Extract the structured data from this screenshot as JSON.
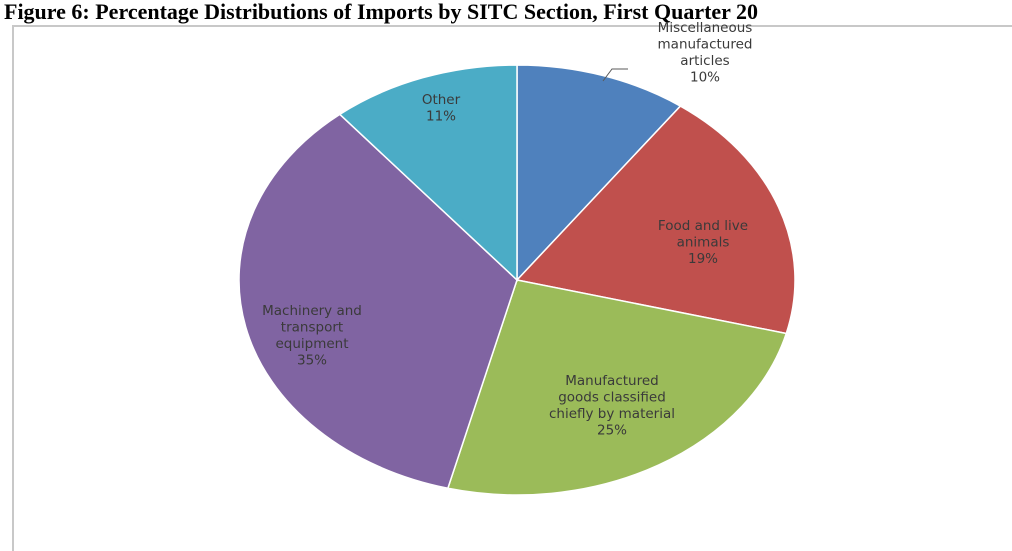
{
  "title": "Figure 6: Percentage Distributions of Imports by SITC Section, First Quarter 20",
  "colors": {
    "misc": "#4f81bd",
    "food": "#c0504d",
    "manufactured": "#9bbb59",
    "machinery": "#8064a2",
    "other": "#4bacc6"
  },
  "chart_data": {
    "type": "pie",
    "title": "Figure 6: Percentage Distributions of Imports by SITC Section, First Quarter 20",
    "slices": [
      {
        "label": [
          "Miscellaneous",
          "manufactured",
          "articles"
        ],
        "value": 10,
        "pct_label": "10%",
        "color_key": "misc"
      },
      {
        "label": [
          "Food and live",
          "animals"
        ],
        "value": 19,
        "pct_label": "19%",
        "color_key": "food"
      },
      {
        "label": [
          "Manufactured",
          "goods classified",
          "chiefly  by material"
        ],
        "value": 25,
        "pct_label": "25%",
        "color_key": "manufactured"
      },
      {
        "label": [
          "Machinery and",
          "transport",
          "equipment"
        ],
        "value": 35,
        "pct_label": "35%",
        "color_key": "machinery"
      },
      {
        "label": [
          "Other"
        ],
        "value": 11,
        "pct_label": "11%",
        "color_key": "other"
      }
    ],
    "start": "12 o'clock",
    "direction": "clockwise",
    "legend": "none"
  }
}
